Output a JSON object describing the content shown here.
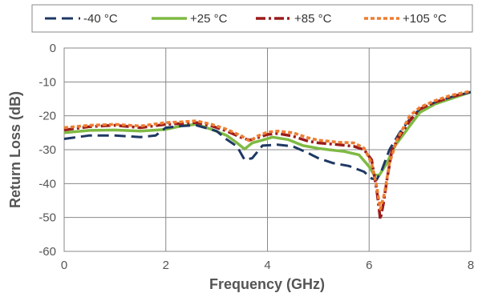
{
  "chart_data": {
    "type": "line",
    "title": "",
    "xlabel": "Frequency (GHz)",
    "ylabel": "Return Loss (dB)",
    "xlim": [
      0,
      8
    ],
    "ylim": [
      -60,
      0
    ],
    "x_ticks": [
      "0",
      "2",
      "4",
      "6",
      "8"
    ],
    "y_ticks": [
      "0",
      "-10",
      "-20",
      "-30",
      "-40",
      "-50",
      "-60"
    ],
    "grid": true,
    "legend_position": "top",
    "series": [
      {
        "name": "-40 °C",
        "color": "#1f3864",
        "dash": "dashed",
        "points": [
          [
            0,
            -26.8
          ],
          [
            0.5,
            -25.8
          ],
          [
            1,
            -25.8
          ],
          [
            1.5,
            -26.3
          ],
          [
            1.8,
            -25.8
          ],
          [
            2,
            -23.5
          ],
          [
            2.3,
            -23
          ],
          [
            2.6,
            -22.8
          ],
          [
            3,
            -24.5
          ],
          [
            3.2,
            -27
          ],
          [
            3.4,
            -29
          ],
          [
            3.55,
            -33
          ],
          [
            3.7,
            -32.5
          ],
          [
            3.9,
            -28.8
          ],
          [
            4.2,
            -28.5
          ],
          [
            4.5,
            -29
          ],
          [
            4.8,
            -31
          ],
          [
            5,
            -32.5
          ],
          [
            5.3,
            -34
          ],
          [
            5.6,
            -34.8
          ],
          [
            5.9,
            -36.5
          ],
          [
            6.05,
            -38.5
          ],
          [
            6.15,
            -38.8
          ],
          [
            6.25,
            -36
          ],
          [
            6.4,
            -30
          ],
          [
            6.6,
            -25
          ],
          [
            6.8,
            -21
          ],
          [
            7,
            -18
          ],
          [
            7.3,
            -16
          ],
          [
            7.6,
            -14.5
          ],
          [
            8,
            -13
          ]
        ]
      },
      {
        "name": "+25 °C",
        "color": "#7fba43",
        "dash": "solid",
        "points": [
          [
            0,
            -25
          ],
          [
            0.5,
            -24.3
          ],
          [
            1,
            -24.2
          ],
          [
            1.5,
            -24.5
          ],
          [
            2,
            -24
          ],
          [
            2.3,
            -23
          ],
          [
            2.6,
            -22.5
          ],
          [
            2.9,
            -24
          ],
          [
            3.2,
            -25.8
          ],
          [
            3.4,
            -28
          ],
          [
            3.55,
            -29.8
          ],
          [
            3.7,
            -28
          ],
          [
            3.9,
            -27.2
          ],
          [
            4.1,
            -26.3
          ],
          [
            4.4,
            -27
          ],
          [
            4.7,
            -28.8
          ],
          [
            5,
            -29.6
          ],
          [
            5.2,
            -30
          ],
          [
            5.5,
            -30.5
          ],
          [
            5.8,
            -31.5
          ],
          [
            6,
            -35
          ],
          [
            6.1,
            -37.5
          ],
          [
            6.2,
            -37.5
          ],
          [
            6.35,
            -34
          ],
          [
            6.5,
            -29
          ],
          [
            6.7,
            -25
          ],
          [
            7,
            -19
          ],
          [
            7.3,
            -16.5
          ],
          [
            7.6,
            -15
          ],
          [
            8,
            -13
          ]
        ]
      },
      {
        "name": "+85 °C",
        "color": "#9b1b1b",
        "dash": "dashdot",
        "points": [
          [
            0,
            -24.2
          ],
          [
            0.5,
            -23.2
          ],
          [
            1,
            -22.8
          ],
          [
            1.5,
            -23.5
          ],
          [
            2,
            -22.5
          ],
          [
            2.3,
            -22.3
          ],
          [
            2.6,
            -22
          ],
          [
            2.9,
            -23
          ],
          [
            3.2,
            -24.5
          ],
          [
            3.5,
            -26.5
          ],
          [
            3.65,
            -27.2
          ],
          [
            3.8,
            -26.5
          ],
          [
            4,
            -25.5
          ],
          [
            4.2,
            -25.2
          ],
          [
            4.5,
            -26
          ],
          [
            4.8,
            -27.5
          ],
          [
            5,
            -28
          ],
          [
            5.4,
            -28.5
          ],
          [
            5.7,
            -29
          ],
          [
            5.9,
            -30
          ],
          [
            6.05,
            -33
          ],
          [
            6.15,
            -42
          ],
          [
            6.22,
            -50.5
          ],
          [
            6.28,
            -46
          ],
          [
            6.35,
            -39
          ],
          [
            6.45,
            -30
          ],
          [
            6.6,
            -26
          ],
          [
            6.8,
            -21.5
          ],
          [
            7,
            -18
          ],
          [
            7.3,
            -16
          ],
          [
            7.6,
            -14.5
          ],
          [
            8,
            -12.8
          ]
        ]
      },
      {
        "name": "+105 °C",
        "color": "#ed7d31",
        "dash": "dotted",
        "points": [
          [
            0,
            -23.5
          ],
          [
            0.5,
            -22.8
          ],
          [
            1,
            -22.5
          ],
          [
            1.5,
            -23
          ],
          [
            2,
            -22
          ],
          [
            2.3,
            -21.8
          ],
          [
            2.6,
            -21.5
          ],
          [
            2.9,
            -22.5
          ],
          [
            3.2,
            -24
          ],
          [
            3.5,
            -26
          ],
          [
            3.65,
            -27.5
          ],
          [
            3.8,
            -26
          ],
          [
            4,
            -24.8
          ],
          [
            4.2,
            -24.5
          ],
          [
            4.5,
            -25
          ],
          [
            4.8,
            -26.5
          ],
          [
            5,
            -27.2
          ],
          [
            5.4,
            -27.8
          ],
          [
            5.7,
            -28
          ],
          [
            5.9,
            -29.5
          ],
          [
            6.05,
            -34
          ],
          [
            6.15,
            -41
          ],
          [
            6.22,
            -47.5
          ],
          [
            6.3,
            -43
          ],
          [
            6.4,
            -34
          ],
          [
            6.55,
            -27
          ],
          [
            6.8,
            -20
          ],
          [
            7,
            -17.5
          ],
          [
            7.3,
            -15.5
          ],
          [
            7.6,
            -14
          ],
          [
            8,
            -12.7
          ]
        ]
      }
    ]
  }
}
